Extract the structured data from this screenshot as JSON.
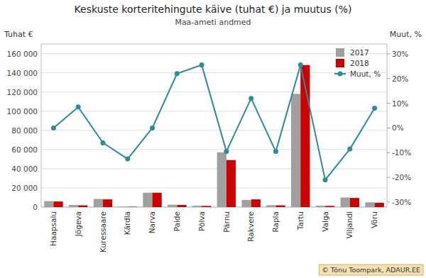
{
  "chart_data": {
    "type": "bar",
    "title": "Keskuste korteritehingute käive (tuhat €) ja muutus (%)",
    "subtitle": "Maa-ameti andmed",
    "y_label": "Tuhat €",
    "y2_label": "Muut, %",
    "categories": [
      "Haapsalu",
      "Jõgeva",
      "Kuressaare",
      "Kärdla",
      "Narva",
      "Paide",
      "Põlva",
      "Pärnu",
      "Rakvere",
      "Rapla",
      "Tartu",
      "Valga",
      "Viljandi",
      "Võru"
    ],
    "series": [
      {
        "name": "2017",
        "color": "#a0a0a0",
        "values": [
          6200,
          2200,
          8500,
          500,
          15000,
          2500,
          1500,
          57000,
          7500,
          2000,
          118000,
          1500,
          10000,
          5000
        ]
      },
      {
        "name": "2018",
        "color": "#cc0000",
        "values": [
          5800,
          1800,
          8000,
          400,
          15000,
          2200,
          1200,
          49000,
          8000,
          1800,
          148000,
          1200,
          9500,
          4500
        ]
      },
      {
        "name": "Muut, %",
        "type": "line",
        "axis": "y2",
        "marker": "circle",
        "color": "#2e8b9a",
        "values": [
          0.0,
          8.5,
          -6.0,
          -12.5,
          0.0,
          22.0,
          25.5,
          -9.5,
          12.0,
          -9.5,
          25.5,
          -21.0,
          -8.5,
          8.0
        ]
      }
    ],
    "ylim": [
      0,
      170000
    ],
    "yticks": [
      0,
      {
        "value": 20000,
        "label": "20 000"
      },
      {
        "value": 40000,
        "label": "40 000"
      },
      {
        "value": 60000,
        "label": "60 000"
      },
      {
        "value": 80000,
        "label": "80 000"
      },
      {
        "value": 100000,
        "label": "100 000"
      },
      {
        "value": 120000,
        "label": "120 000"
      },
      {
        "value": 140000,
        "label": "140 000"
      },
      {
        "value": 160000,
        "label": "160 000"
      }
    ],
    "y2lim": [
      -32,
      34
    ],
    "y2ticks": [
      {
        "value": -30,
        "label": "-30%"
      },
      {
        "value": -20,
        "label": "-20%"
      },
      {
        "value": -10,
        "label": "-10%"
      },
      {
        "value": 0,
        "label": "0%"
      },
      {
        "value": 10,
        "label": "10%"
      },
      {
        "value": 20,
        "label": "20%"
      },
      {
        "value": 30,
        "label": "30%"
      }
    ],
    "grid": true,
    "legend": "upper right",
    "annotations": [
      "© Tõnu Toompark, ADAUR.EE"
    ]
  }
}
